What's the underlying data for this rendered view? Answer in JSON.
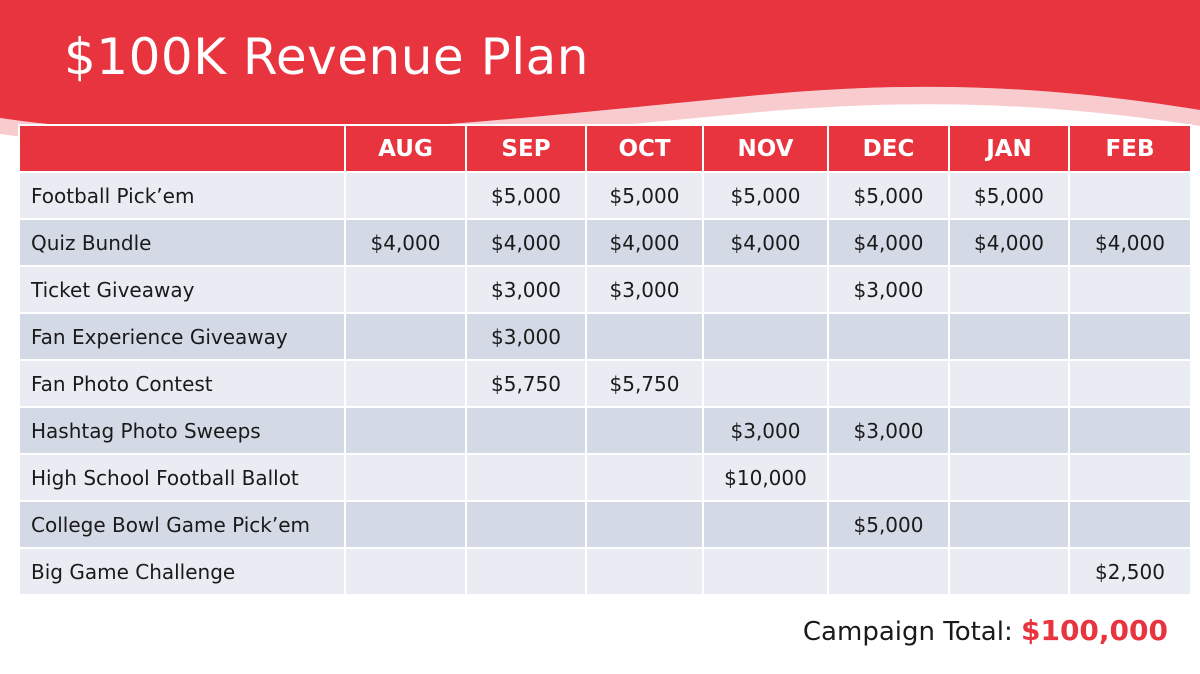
{
  "title": "$100K Revenue Plan",
  "colors": {
    "accent": "#e8343f",
    "row_light": "#e9ecf2",
    "row_dark": "#d4d9e6"
  },
  "table": {
    "corner": "",
    "months": [
      "AUG",
      "SEP",
      "OCT",
      "NOV",
      "DEC",
      "JAN",
      "FEB"
    ],
    "rows": [
      {
        "name": "Football Pick’em",
        "cells": [
          "",
          "$5,000",
          "$5,000",
          "$5,000",
          "$5,000",
          "$5,000",
          ""
        ]
      },
      {
        "name": "Quiz Bundle",
        "cells": [
          "$4,000",
          "$4,000",
          "$4,000",
          "$4,000",
          "$4,000",
          "$4,000",
          "$4,000"
        ]
      },
      {
        "name": "Ticket Giveaway",
        "cells": [
          "",
          "$3,000",
          "$3,000",
          "",
          "$3,000",
          "",
          ""
        ]
      },
      {
        "name": "Fan Experience Giveaway",
        "cells": [
          "",
          "$3,000",
          "",
          "",
          "",
          "",
          ""
        ]
      },
      {
        "name": "Fan Photo Contest",
        "cells": [
          "",
          "$5,750",
          "$5,750",
          "",
          "",
          "",
          ""
        ]
      },
      {
        "name": "Hashtag Photo Sweeps",
        "cells": [
          "",
          "",
          "",
          "$3,000",
          "$3,000",
          "",
          ""
        ]
      },
      {
        "name": "High School Football Ballot",
        "cells": [
          "",
          "",
          "",
          "$10,000",
          "",
          "",
          ""
        ]
      },
      {
        "name": "College Bowl Game Pick’em",
        "cells": [
          "",
          "",
          "",
          "",
          "$5,000",
          "",
          ""
        ]
      },
      {
        "name": "Big Game Challenge",
        "cells": [
          "",
          "",
          "",
          "",
          "",
          "",
          "$2,500"
        ]
      }
    ]
  },
  "total": {
    "label": "Campaign Total:",
    "amount": "$100,000"
  }
}
